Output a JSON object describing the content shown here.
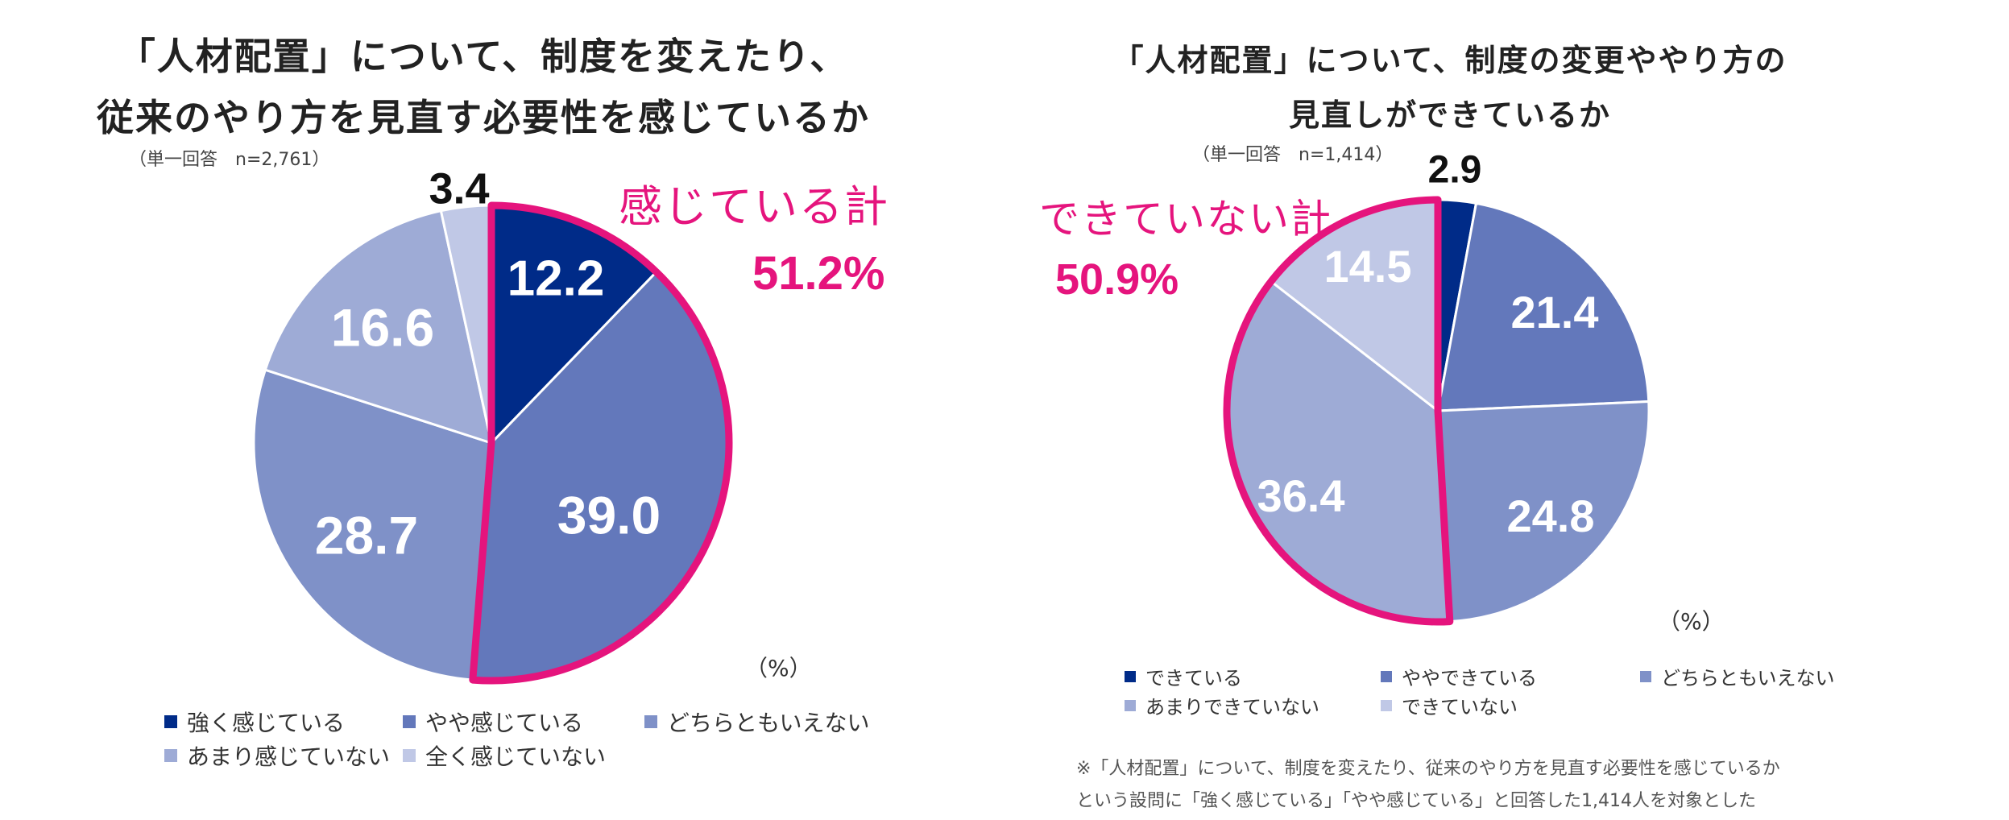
{
  "chart1": {
    "title_line1": "「人材配置」について、制度を変えたり、",
    "title_line2": "従来のやり方を見直す必要性を感じているか",
    "note": "（単一回答　n=2,761）",
    "unit": "（%）",
    "callout_label": "感じている計",
    "callout_value": "51.2%"
  },
  "chart2": {
    "title_line1": "「人材配置」について、制度の変更ややり方の",
    "title_line2": "見直しができているか",
    "note": "（単一回答　n=1,414）",
    "unit": "（%）",
    "callout_label": "できていない計",
    "callout_value": "50.9%"
  },
  "footnote": {
    "line1": "※「人材配置」について、制度を変えたり、従来のやり方を見直す必要性を感じているか",
    "line2": "という設問に「強く感じている」「やや感じている」と回答した1,414人を対象とした"
  },
  "chart_data": [
    {
      "type": "pie",
      "title": "「人材配置」について、制度を変えたり、従来のやり方を見直す必要性を感じているか",
      "categories": [
        "強く感じている",
        "やや感じている",
        "どちらともいえない",
        "あまり感じていない",
        "全く感じていない"
      ],
      "values": [
        12.2,
        39.0,
        28.7,
        16.6,
        3.4
      ],
      "labels": [
        "12.2",
        "39.0",
        "28.7",
        "16.6",
        "3.4"
      ],
      "colors": [
        "#002b88",
        "#6378bb",
        "#7f91c8",
        "#9eabd6",
        "#c0c8e6"
      ],
      "label_colors": [
        "#ffffff",
        "#ffffff",
        "#ffffff",
        "#ffffff",
        "#111111"
      ],
      "highlight": {
        "label": "感じている計",
        "value": "51.2%",
        "indices": [
          0,
          1
        ],
        "color": "#e5147d"
      }
    },
    {
      "type": "pie",
      "title": "「人材配置」について、制度の変更ややり方の見直しができているか",
      "categories": [
        "できている",
        "ややできている",
        "どちらともいえない",
        "あまりできていない",
        "できていない"
      ],
      "values": [
        2.9,
        21.4,
        24.8,
        36.4,
        14.5
      ],
      "labels": [
        "2.9",
        "21.4",
        "24.8",
        "36.4",
        "14.5"
      ],
      "colors": [
        "#002b88",
        "#6378bb",
        "#7f91c8",
        "#9eabd6",
        "#c0c8e6"
      ],
      "label_colors": [
        "#111111",
        "#ffffff",
        "#ffffff",
        "#ffffff",
        "#ffffff"
      ],
      "highlight": {
        "label": "できていない計",
        "value": "50.9%",
        "indices": [
          3,
          4
        ],
        "color": "#e5147d"
      }
    }
  ]
}
